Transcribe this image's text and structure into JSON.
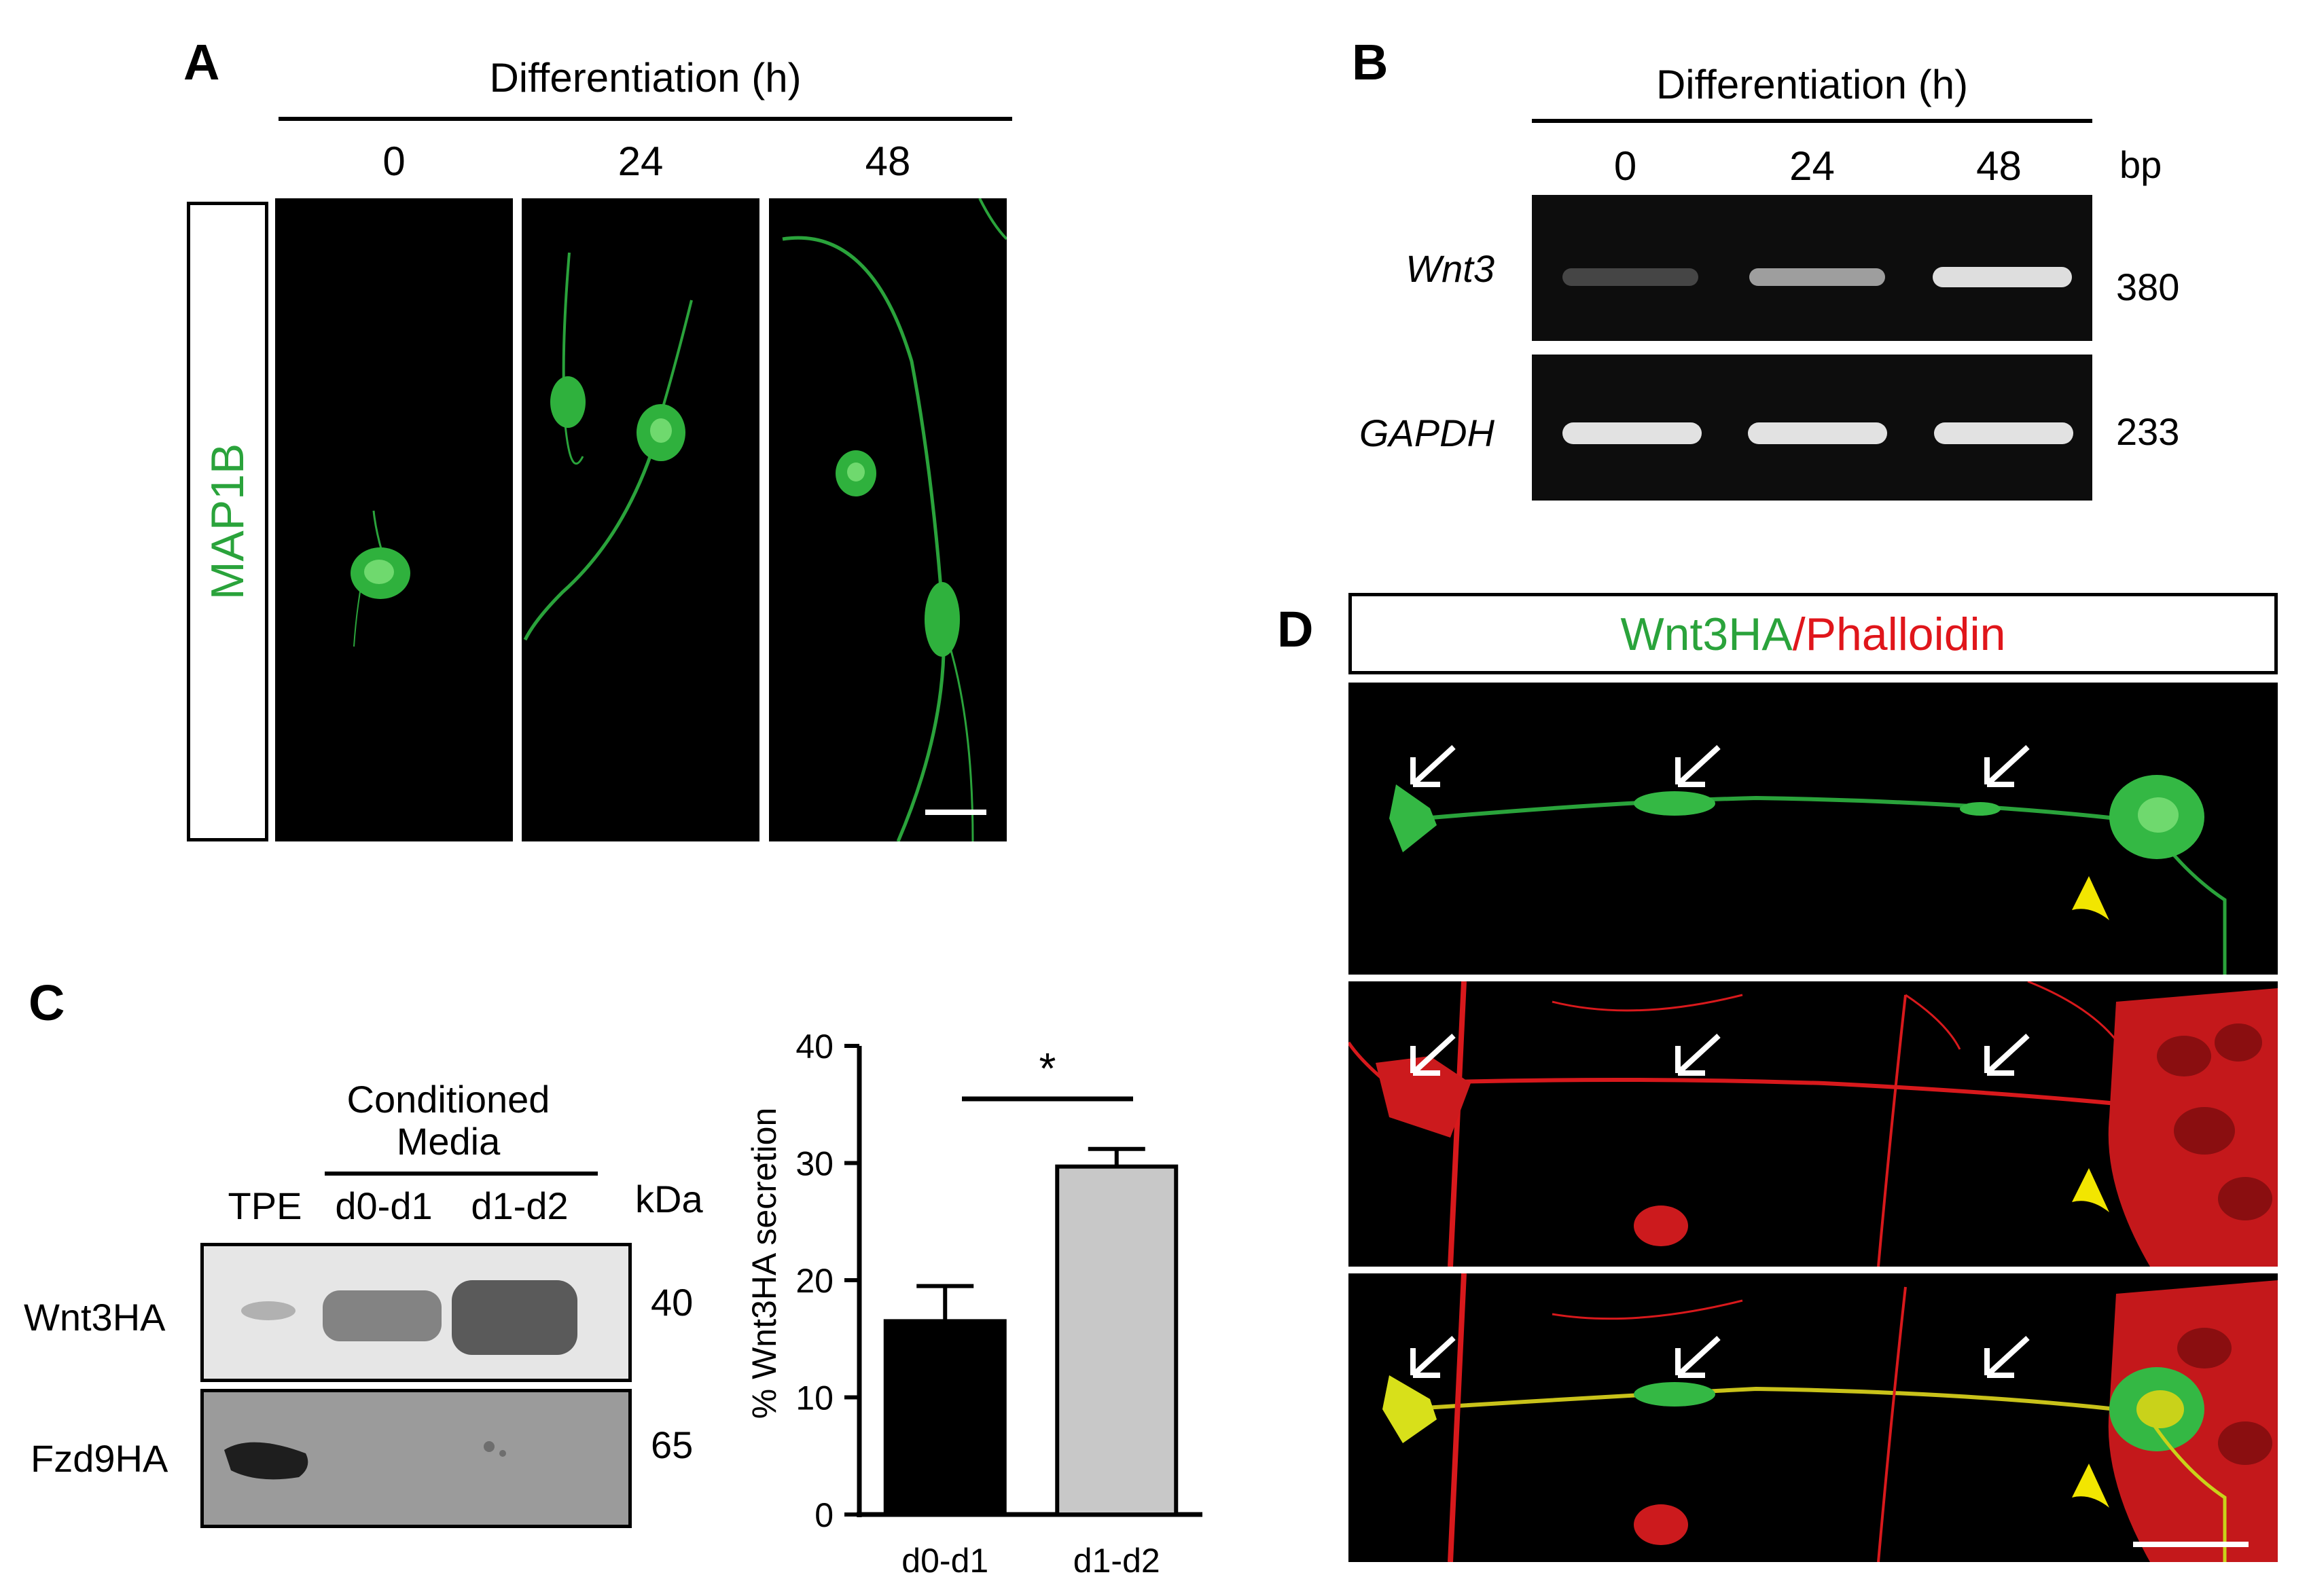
{
  "panels": {
    "A": {
      "label": "A",
      "header": "Differentiation (h)",
      "timepoints": [
        "0",
        "24",
        "48"
      ],
      "marker": "MAP1B",
      "marker_color": "#2aa33b"
    },
    "B": {
      "label": "B",
      "header": "Differentiation (h)",
      "timepoints": [
        "0",
        "24",
        "48"
      ],
      "size_unit": "bp",
      "genes": [
        {
          "name": "Wnt3",
          "size": "380",
          "band_intensity": [
            0.35,
            0.7,
            0.9
          ]
        },
        {
          "name": "GAPDH",
          "size": "233",
          "band_intensity": [
            0.95,
            0.95,
            0.95
          ]
        }
      ]
    },
    "C": {
      "label": "C",
      "group_header": "Conditioned Media",
      "lanes": [
        "TPE",
        "d0-d1",
        "d1-d2"
      ],
      "mw_unit": "kDa",
      "rows": [
        {
          "name": "Wnt3HA",
          "mw": "40"
        },
        {
          "name": "Fzd9HA",
          "mw": "65"
        }
      ],
      "significance": "*"
    },
    "D": {
      "label": "D",
      "title_green": "Wnt3HA",
      "title_sep": "/",
      "title_red": "Phalloidin",
      "green_color": "#2aa33b",
      "red_color": "#e0161b"
    }
  },
  "chart_data": {
    "type": "bar",
    "categories": [
      "d0-d1",
      "d1-d2"
    ],
    "values": [
      16.5,
      29.7
    ],
    "errors": [
      3.0,
      1.5
    ],
    "bar_colors": [
      "#000000",
      "#c8c8c8"
    ],
    "ylabel": "% Wnt3HA secretion",
    "ylim": [
      0,
      40
    ],
    "yticks": [
      "0",
      "10",
      "20",
      "30",
      "40"
    ],
    "grid": false
  }
}
